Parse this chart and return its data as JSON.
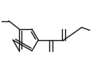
{
  "bg_color": "#ffffff",
  "line_color": "#1a1a1a",
  "line_width": 1.0,
  "figsize": [
    1.17,
    0.94
  ],
  "dpi": 100,
  "xlim": [
    -0.5,
    5.5
  ],
  "ylim": [
    -1.5,
    3.5
  ]
}
